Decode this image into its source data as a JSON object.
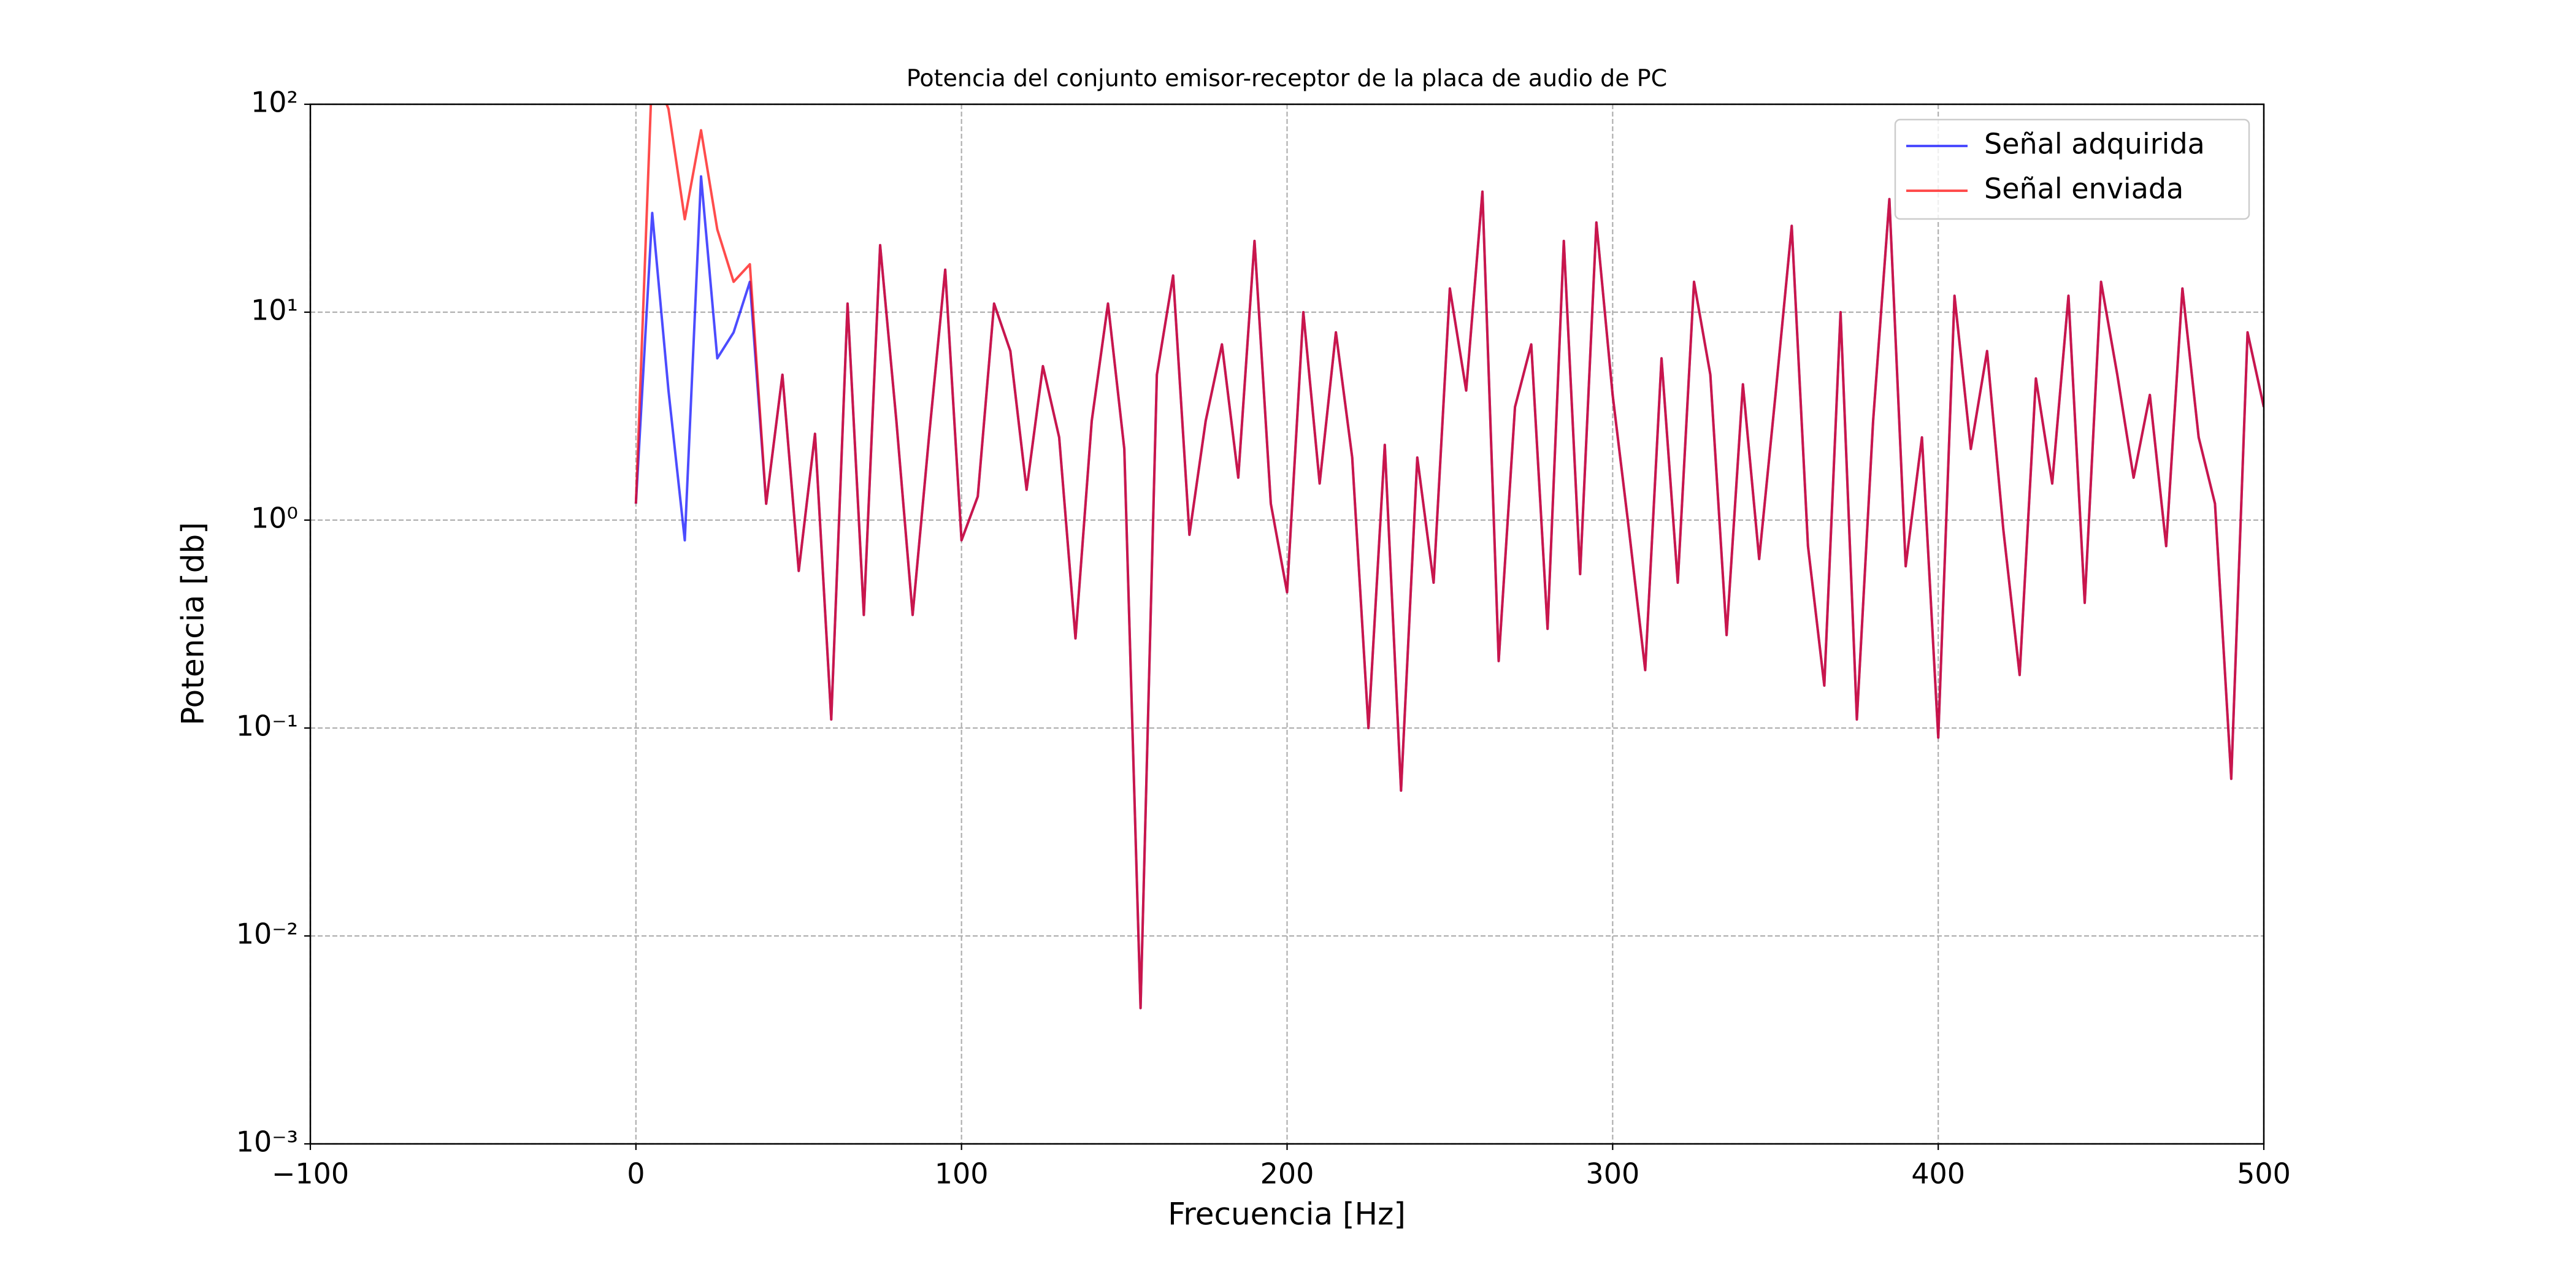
{
  "chart_data": {
    "type": "line",
    "title": "Potencia del conjunto emisor-receptor de la placa de audio de PC",
    "x_label": "Frecuencia [Hz]",
    "y_label": "Potencia [db]",
    "log_y": true,
    "grid": true,
    "legend": "upper right",
    "xlim": [
      -100,
      500
    ],
    "ylim": [
      0.001,
      100
    ],
    "xticks": [
      {
        "value": -100,
        "label": "−100"
      },
      0,
      100,
      200,
      300,
      400,
      500
    ],
    "yticks": [
      {
        "value": 0.001,
        "label": "10⁻³"
      },
      {
        "value": 0.01,
        "label": "10⁻²"
      },
      {
        "value": 0.1,
        "label": "10⁻¹"
      },
      {
        "value": 1,
        "label": "10⁰"
      },
      {
        "value": 10,
        "label": "10¹"
      },
      {
        "value": 100,
        "label": "10²"
      }
    ],
    "x": [
      0,
      5,
      10,
      15,
      20,
      25,
      30,
      35,
      40,
      45,
      50,
      55,
      60,
      65,
      70,
      75,
      80,
      85,
      90,
      95,
      100,
      105,
      110,
      115,
      120,
      125,
      130,
      135,
      140,
      145,
      150,
      155,
      160,
      165,
      170,
      175,
      180,
      185,
      190,
      195,
      200,
      205,
      210,
      215,
      220,
      225,
      230,
      235,
      240,
      245,
      250,
      255,
      260,
      265,
      270,
      275,
      280,
      285,
      290,
      295,
      300,
      305,
      310,
      315,
      320,
      325,
      330,
      335,
      340,
      345,
      350,
      355,
      360,
      365,
      370,
      375,
      380,
      385,
      390,
      395,
      400,
      405,
      410,
      415,
      420,
      425,
      430,
      435,
      440,
      445,
      450,
      455,
      460,
      465,
      470,
      475,
      480,
      485,
      490,
      495,
      500
    ],
    "series": [
      {
        "name": "Señal adquirida",
        "color": "#0000ff",
        "values": [
          1.2,
          30,
          4.2,
          0.8,
          45,
          6,
          8,
          14,
          1.2,
          5,
          0.57,
          2.6,
          0.11,
          11,
          0.35,
          21,
          3,
          0.35,
          2.5,
          16,
          0.8,
          1.3,
          11,
          6.5,
          1.4,
          5.5,
          2.5,
          0.27,
          3,
          11,
          2.2,
          0.0045,
          5,
          15,
          0.85,
          3,
          7,
          1.6,
          22,
          1.2,
          0.45,
          10,
          1.5,
          8,
          2,
          0.1,
          2.3,
          0.05,
          2,
          0.5,
          13,
          4.2,
          38,
          0.21,
          3.5,
          7,
          0.3,
          22,
          0.55,
          27,
          4,
          0.9,
          0.19,
          6,
          0.5,
          14,
          5,
          0.28,
          4.5,
          0.65,
          4,
          26,
          0.75,
          0.16,
          10,
          0.11,
          3,
          35,
          0.6,
          2.5,
          0.09,
          12,
          2.2,
          6.5,
          0.9,
          0.18,
          4.8,
          1.5,
          12,
          0.4,
          14,
          5,
          1.6,
          4,
          0.75,
          13,
          2.5,
          1.2,
          0.057,
          8,
          3.5
        ]
      },
      {
        "name": "Señal enviada",
        "color": "#ff0000",
        "values": [
          1.2,
          150,
          95,
          28,
          75,
          25,
          14,
          17,
          1.2,
          5,
          0.57,
          2.6,
          0.11,
          11,
          0.35,
          21,
          3,
          0.35,
          2.5,
          16,
          0.8,
          1.3,
          11,
          6.5,
          1.4,
          5.5,
          2.5,
          0.27,
          3,
          11,
          2.2,
          0.0045,
          5,
          15,
          0.85,
          3,
          7,
          1.6,
          22,
          1.2,
          0.45,
          10,
          1.5,
          8,
          2,
          0.1,
          2.3,
          0.05,
          2,
          0.5,
          13,
          4.2,
          38,
          0.21,
          3.5,
          7,
          0.3,
          22,
          0.55,
          27,
          4,
          0.9,
          0.19,
          6,
          0.5,
          14,
          5,
          0.28,
          4.5,
          0.65,
          4,
          26,
          0.75,
          0.16,
          10,
          0.11,
          3,
          35,
          0.6,
          2.5,
          0.09,
          12,
          2.2,
          6.5,
          0.9,
          0.18,
          4.8,
          1.5,
          12,
          0.4,
          14,
          5,
          1.6,
          4,
          0.75,
          13,
          2.5,
          1.2,
          0.057,
          8,
          3.5
        ]
      }
    ]
  }
}
